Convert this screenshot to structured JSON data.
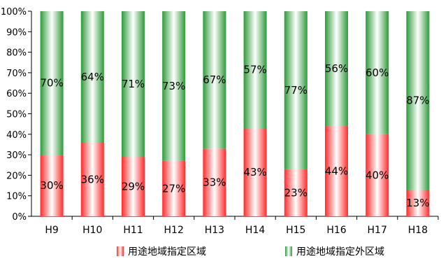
{
  "chart_data": {
    "type": "bar",
    "stacked": true,
    "percent_stacked": true,
    "categories": [
      "H9",
      "H10",
      "H11",
      "H12",
      "H13",
      "H14",
      "H15",
      "H16",
      "H17",
      "H18"
    ],
    "series": [
      {
        "name": "用途地域指定区域",
        "color": "#ff2a2a",
        "values": [
          30,
          36,
          29,
          27,
          33,
          43,
          23,
          44,
          40,
          13
        ],
        "labels": [
          "30%",
          "36%",
          "29%",
          "27%",
          "33%",
          "43%",
          "23%",
          "44%",
          "40%",
          "13%"
        ]
      },
      {
        "name": "用途地域指定外区域",
        "color": "#2e9a3a",
        "values": [
          70,
          64,
          71,
          73,
          67,
          57,
          77,
          56,
          60,
          87
        ],
        "labels": [
          "70%",
          "64%",
          "71%",
          "73%",
          "67%",
          "57%",
          "77%",
          "56%",
          "60%",
          "87%"
        ]
      }
    ],
    "y_ticks": [
      "0%",
      "10%",
      "20%",
      "30%",
      "40%",
      "50%",
      "60%",
      "70%",
      "80%",
      "90%",
      "100%"
    ],
    "ylim": [
      0,
      100
    ],
    "grid": false,
    "legend_position": "bottom"
  }
}
